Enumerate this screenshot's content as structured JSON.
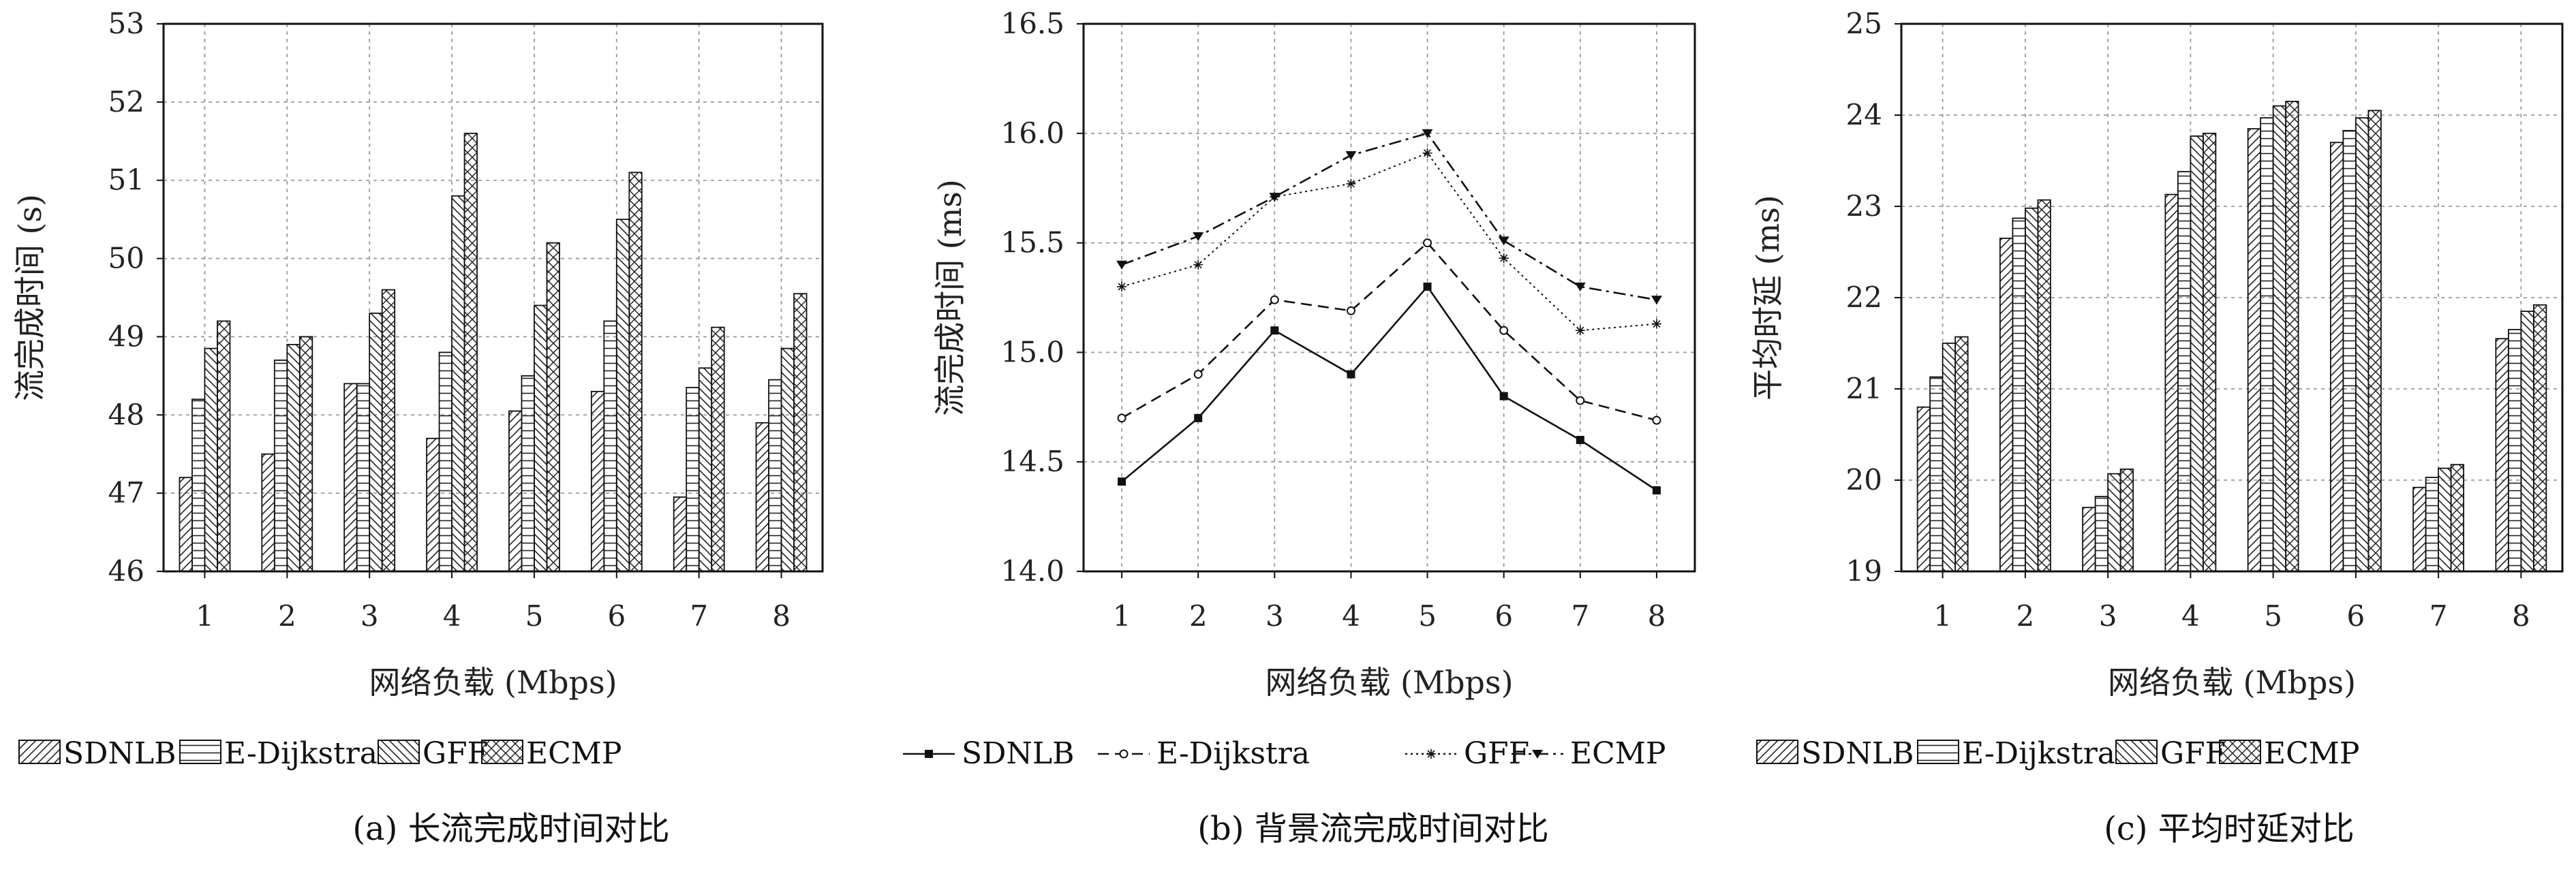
{
  "chart_data": [
    {
      "type": "bar",
      "caption": "(a) 长流完成时间对比",
      "xlabel": "网络负载 (Mbps)",
      "ylabel": "流完成时间 (s)",
      "categories": [
        "1",
        "2",
        "3",
        "4",
        "5",
        "6",
        "7",
        "8"
      ],
      "ylim": [
        46,
        53
      ],
      "yticks": [
        "46",
        "47",
        "48",
        "49",
        "50",
        "51",
        "52",
        "53"
      ],
      "grid": true,
      "legend_position": "bottom",
      "series": [
        {
          "name": "SDNLB",
          "pattern": "diag-up",
          "values": [
            47.2,
            47.5,
            48.4,
            47.7,
            48.05,
            48.3,
            46.95,
            47.9
          ]
        },
        {
          "name": "E-Dijkstra",
          "pattern": "horizontal",
          "values": [
            48.2,
            48.7,
            48.4,
            48.8,
            48.5,
            49.2,
            48.35,
            48.45
          ]
        },
        {
          "name": "GFF",
          "pattern": "diag-down",
          "values": [
            48.85,
            48.9,
            49.3,
            50.8,
            49.4,
            50.5,
            48.6,
            48.85
          ]
        },
        {
          "name": "ECMP",
          "pattern": "crosshatch",
          "values": [
            49.2,
            49.0,
            49.6,
            51.6,
            50.2,
            51.1,
            49.12,
            49.55
          ]
        }
      ]
    },
    {
      "type": "line",
      "caption": "(b) 背景流完成时间对比",
      "xlabel": "网络负载 (Mbps)",
      "ylabel": "流完成时间 (ms)",
      "categories": [
        "1",
        "2",
        "3",
        "4",
        "5",
        "6",
        "7",
        "8"
      ],
      "ylim": [
        14.0,
        16.5
      ],
      "yticks": [
        "14.0",
        "14.5",
        "15.0",
        "15.5",
        "16.0",
        "16.5"
      ],
      "grid": true,
      "legend_position": "bottom",
      "series": [
        {
          "name": "SDNLB",
          "style": "solid",
          "marker": "square",
          "values": [
            14.41,
            14.7,
            15.1,
            14.9,
            15.3,
            14.8,
            14.6,
            14.37
          ]
        },
        {
          "name": "E-Dijkstra",
          "style": "dashed",
          "marker": "circle",
          "values": [
            14.7,
            14.9,
            15.24,
            15.19,
            15.5,
            15.1,
            14.78,
            14.69
          ]
        },
        {
          "name": "GFF",
          "style": "dotted",
          "marker": "star",
          "values": [
            15.3,
            15.4,
            15.71,
            15.77,
            15.91,
            15.43,
            15.1,
            15.13
          ]
        },
        {
          "name": "ECMP",
          "style": "dashdot",
          "marker": "triangle-down",
          "values": [
            15.4,
            15.53,
            15.71,
            15.9,
            16.0,
            15.51,
            15.3,
            15.24
          ]
        }
      ]
    },
    {
      "type": "bar",
      "caption": "(c) 平均时延对比",
      "xlabel": "网络负载 (Mbps)",
      "ylabel": "平均时延 (ms)",
      "categories": [
        "1",
        "2",
        "3",
        "4",
        "5",
        "6",
        "7",
        "8"
      ],
      "ylim": [
        19,
        25
      ],
      "yticks": [
        "19",
        "20",
        "21",
        "22",
        "23",
        "24",
        "25"
      ],
      "grid": true,
      "legend_position": "bottom",
      "series": [
        {
          "name": "SDNLB",
          "pattern": "diag-up",
          "values": [
            20.8,
            22.65,
            19.7,
            23.13,
            23.85,
            23.7,
            19.92,
            21.55
          ]
        },
        {
          "name": "E-Dijkstra",
          "pattern": "horizontal",
          "values": [
            21.13,
            22.87,
            19.82,
            23.38,
            23.97,
            23.83,
            20.03,
            21.65
          ]
        },
        {
          "name": "GFF",
          "pattern": "diag-down",
          "values": [
            21.5,
            22.98,
            20.07,
            23.77,
            24.1,
            23.97,
            20.13,
            21.85
          ]
        },
        {
          "name": "ECMP",
          "pattern": "crosshatch",
          "values": [
            21.57,
            23.07,
            20.12,
            23.8,
            24.15,
            24.05,
            20.17,
            21.92
          ]
        }
      ]
    }
  ]
}
